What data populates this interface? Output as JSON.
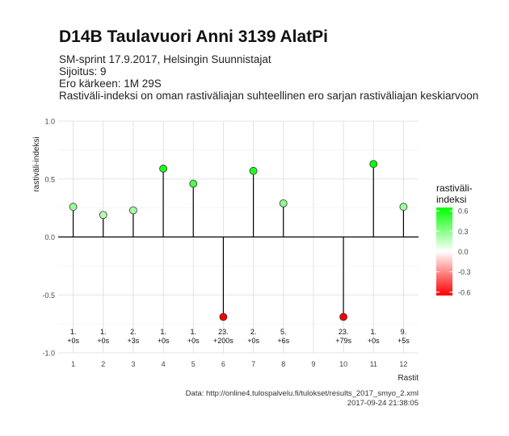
{
  "header": {
    "title": "D14B Taulavuori Anni 3139 AlatPi",
    "subtitle_lines": [
      "SM-sprint 17.9.2017, Helsingin Suunnistajat",
      "Sijoitus: 9",
      "Ero kärkeen: 1M 29S",
      "Rastiväli-indeksi on oman rastiväliajan suhteellinen ero sarjan rastiväliajan keskiarvoon"
    ]
  },
  "chart_data": {
    "type": "lollipop",
    "xlabel": "Rastit",
    "ylabel": "rastiväli-indeksi",
    "x": [
      1,
      2,
      3,
      4,
      5,
      6,
      7,
      8,
      10,
      11,
      12
    ],
    "values": [
      0.26,
      0.19,
      0.23,
      0.59,
      0.46,
      -0.69,
      0.57,
      0.29,
      -0.69,
      0.63,
      0.26
    ],
    "rank_labels": [
      "1.",
      "1.",
      "2.",
      "1.",
      "1.",
      "23.",
      "2.",
      "5.",
      "23.",
      "1.",
      "9."
    ],
    "diff_labels": [
      "+0s",
      "+0s",
      "+3s",
      "+0s",
      "+0s",
      "+200s",
      "+0s",
      "+6s",
      "+79s",
      "+0s",
      "+5s"
    ],
    "xticks": [
      "1",
      "2",
      "3",
      "4",
      "5",
      "6",
      "7",
      "8",
      "9",
      "10",
      "11",
      "12"
    ],
    "yticks": [
      "-1.0",
      "-0.5",
      "0.0",
      "0.5",
      "1.0"
    ],
    "xlim": [
      0.5,
      12.5
    ],
    "ylim": [
      -1.0,
      1.0
    ],
    "grid": true,
    "legend": {
      "title_lines": [
        "rastiväli-",
        "indeksi"
      ],
      "ticks": [
        "0.6",
        "0.3",
        "0.0",
        "-0.3",
        "-0.6"
      ],
      "placement": "right",
      "colors": {
        "low": "#ff0000",
        "mid": "#ffffff",
        "high": "#00ff00"
      },
      "range": [
        -0.65,
        0.65
      ]
    }
  },
  "caption": {
    "source": "Data: http://online4.tulospalvelu.fi/tulokset/results_2017_smyo_2.xml",
    "timestamp": "2017-09-24 21:38:05"
  }
}
